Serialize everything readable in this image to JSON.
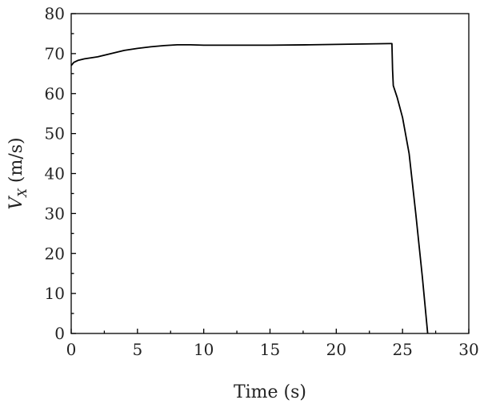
{
  "chart_data": {
    "type": "line",
    "xlabel": "Time (s)",
    "ylabel": {
      "main": "V",
      "sub": "X",
      "unit": " (m/s)"
    },
    "xlim": [
      0,
      30
    ],
    "ylim": [
      0,
      80
    ],
    "x_ticks": [
      0,
      5,
      10,
      15,
      20,
      25,
      30
    ],
    "x_tick_labels": [
      "0",
      "5",
      "10",
      "15",
      "20",
      "25",
      "30"
    ],
    "y_ticks": [
      0,
      10,
      20,
      30,
      40,
      50,
      60,
      70,
      80
    ],
    "y_tick_labels": [
      "0",
      "10",
      "20",
      "30",
      "40",
      "50",
      "60",
      "70",
      "80"
    ],
    "x_minor_ticks": [
      2.5,
      7.5,
      12.5,
      17.5,
      22.5,
      27.5
    ],
    "y_minor_ticks": [
      5,
      15,
      25,
      35,
      45,
      55,
      65,
      75
    ],
    "grid": false,
    "series": [
      {
        "x": [
          0,
          0.2,
          0.5,
          1,
          2,
          3,
          4,
          5,
          6,
          7,
          8,
          9,
          10,
          12,
          15,
          18,
          20,
          22,
          24,
          24.2,
          24.25,
          24.3,
          24.6,
          25,
          25.5,
          26,
          26.5,
          26.9
        ],
        "y": [
          67.0,
          67.8,
          68.3,
          68.7,
          69.2,
          70.0,
          70.8,
          71.3,
          71.7,
          72.0,
          72.2,
          72.2,
          72.1,
          72.1,
          72.1,
          72.2,
          72.3,
          72.4,
          72.5,
          72.5,
          66.0,
          62.0,
          59.0,
          54.0,
          45.0,
          30.0,
          14.0,
          0.0
        ]
      }
    ]
  }
}
